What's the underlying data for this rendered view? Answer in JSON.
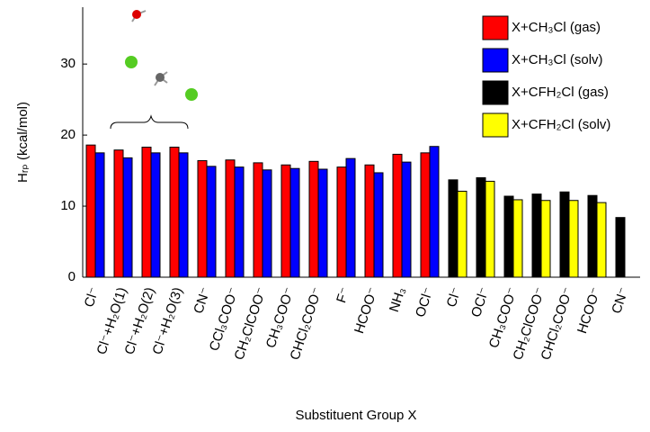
{
  "chart_data": {
    "type": "bar",
    "ylabel": "Hᵣₚ (kcal/mol)",
    "xlabel": "Substituent Group X",
    "categories": [
      "Cl⁻",
      "Cl⁻+H₂O(1)",
      "Cl⁻+H₂O(2)",
      "Cl⁻+H₂O(3)",
      "CN⁻",
      "CCl₃COO⁻",
      "CH₂ClCOO⁻",
      "CH₃COO⁻",
      "CHCl₂COO⁻",
      "F⁻",
      "HCOO⁻",
      "NH₃",
      "OCl⁻",
      "Cl⁻",
      "OCl⁻",
      "CH₃COO⁻",
      "CH₂ClCOO⁻",
      "CHCl₂COO⁻",
      "HCOO⁻",
      "CN⁻"
    ],
    "series": [
      {
        "name": "X+CH₃Cl (gas)",
        "color": "#ff0000",
        "values": [
          18.6,
          17.9,
          18.3,
          18.3,
          16.4,
          16.5,
          16.1,
          15.8,
          16.3,
          15.5,
          15.8,
          17.3,
          17.5,
          null,
          null,
          null,
          null,
          null,
          null,
          null
        ]
      },
      {
        "name": "X+CH₃Cl (solv)",
        "color": "#0000ff",
        "values": [
          17.5,
          16.8,
          17.5,
          17.5,
          15.6,
          15.5,
          15.1,
          15.3,
          15.2,
          16.7,
          14.7,
          16.2,
          18.4,
          null,
          null,
          null,
          null,
          null,
          null,
          null
        ]
      },
      {
        "name": "X+CFH₂Cl (gas)",
        "color": "#000000",
        "values": [
          null,
          null,
          null,
          null,
          null,
          null,
          null,
          null,
          null,
          null,
          null,
          null,
          null,
          13.7,
          14.0,
          11.4,
          11.7,
          12.0,
          11.5,
          8.4
        ]
      },
      {
        "name": "X+CFH₂Cl (solv)",
        "color": "#ffff00",
        "values": [
          null,
          null,
          null,
          null,
          null,
          null,
          null,
          null,
          null,
          null,
          null,
          null,
          null,
          12.1,
          13.5,
          10.9,
          10.8,
          10.8,
          10.5,
          null
        ]
      }
    ],
    "ylim": [
      0,
      38
    ],
    "yticks": [
      0,
      10,
      20,
      30
    ]
  }
}
